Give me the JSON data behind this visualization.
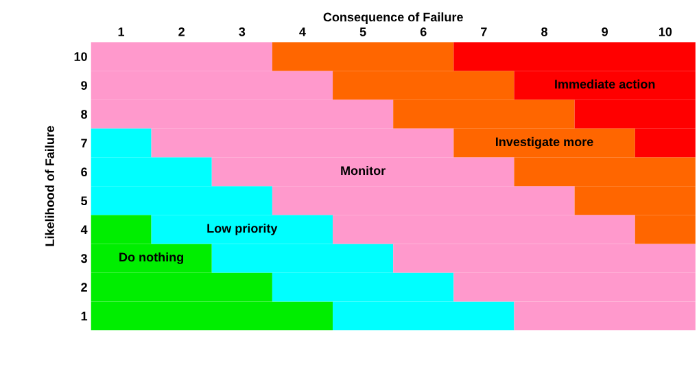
{
  "chart_data": {
    "type": "bar",
    "orientation": "horizontal",
    "stacked": true,
    "xlabel": "Consequence of Failure",
    "ylabel": "Likelihood of Failure",
    "categories": [
      "10",
      "9",
      "8",
      "7",
      "6",
      "5",
      "4",
      "3",
      "2",
      "1"
    ],
    "xlim": [
      0,
      10
    ],
    "xticks": [
      {
        "value": 0.5,
        "label": "1"
      },
      {
        "value": 1.5,
        "label": "2"
      },
      {
        "value": 2.5,
        "label": "3"
      },
      {
        "value": 3.5,
        "label": "4"
      },
      {
        "value": 4.5,
        "label": "5"
      },
      {
        "value": 5.5,
        "label": "6"
      },
      {
        "value": 6.5,
        "label": "7"
      },
      {
        "value": 7.5,
        "label": "8"
      },
      {
        "value": 8.5,
        "label": "9"
      },
      {
        "value": 9.5,
        "label": "10"
      }
    ],
    "series": [
      {
        "name": "Do nothing",
        "color": "#00ee00",
        "values": [
          0,
          0,
          0,
          0,
          0,
          0,
          1,
          2,
          3,
          4
        ]
      },
      {
        "name": "Low priority",
        "color": "#00ffff",
        "values": [
          0,
          0,
          0,
          1,
          2,
          3,
          3,
          3,
          3,
          3
        ]
      },
      {
        "name": "Monitor",
        "color": "#ff99cc",
        "values": [
          3,
          4,
          5,
          5,
          5,
          5,
          5,
          5,
          4,
          3
        ]
      },
      {
        "name": "Investigate more",
        "color": "#ff6600",
        "values": [
          3,
          3,
          3,
          3,
          3,
          2,
          1,
          0,
          0,
          0
        ]
      },
      {
        "name": "Immediate action",
        "color": "#ff0000",
        "values": [
          4,
          3,
          2,
          1,
          0,
          0,
          0,
          0,
          0,
          0
        ]
      }
    ]
  }
}
